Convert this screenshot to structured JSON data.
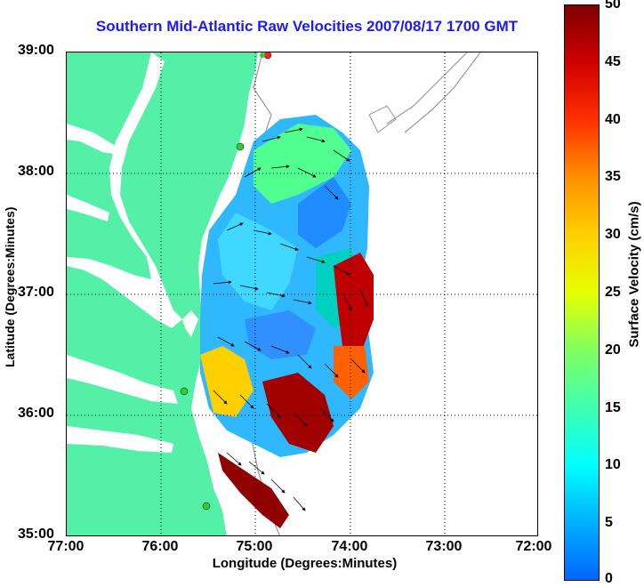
{
  "title": "Southern Mid-Atlantic Raw Velocities 2007/08/17 1700 GMT",
  "xaxis": {
    "label": "Longitude (Degrees:Minutes)",
    "ticks": [
      "77:00",
      "76:00",
      "75:00",
      "74:00",
      "73:00",
      "72:00"
    ]
  },
  "yaxis": {
    "label": "Latitude (Degrees:Minutes)",
    "ticks": [
      "39:00",
      "38:00",
      "37:00",
      "36:00",
      "35:00"
    ]
  },
  "colorbar": {
    "label": "Surface Velocity (cm/s)",
    "ticks": [
      "50",
      "45",
      "40",
      "35",
      "30",
      "25",
      "20",
      "15",
      "10",
      "5",
      "0"
    ],
    "range": [
      0,
      50
    ]
  },
  "colors": {
    "land": "#55f0a8",
    "title": "#1a1aff",
    "station": "#33cc33",
    "station_alert": "#ff2020"
  }
}
